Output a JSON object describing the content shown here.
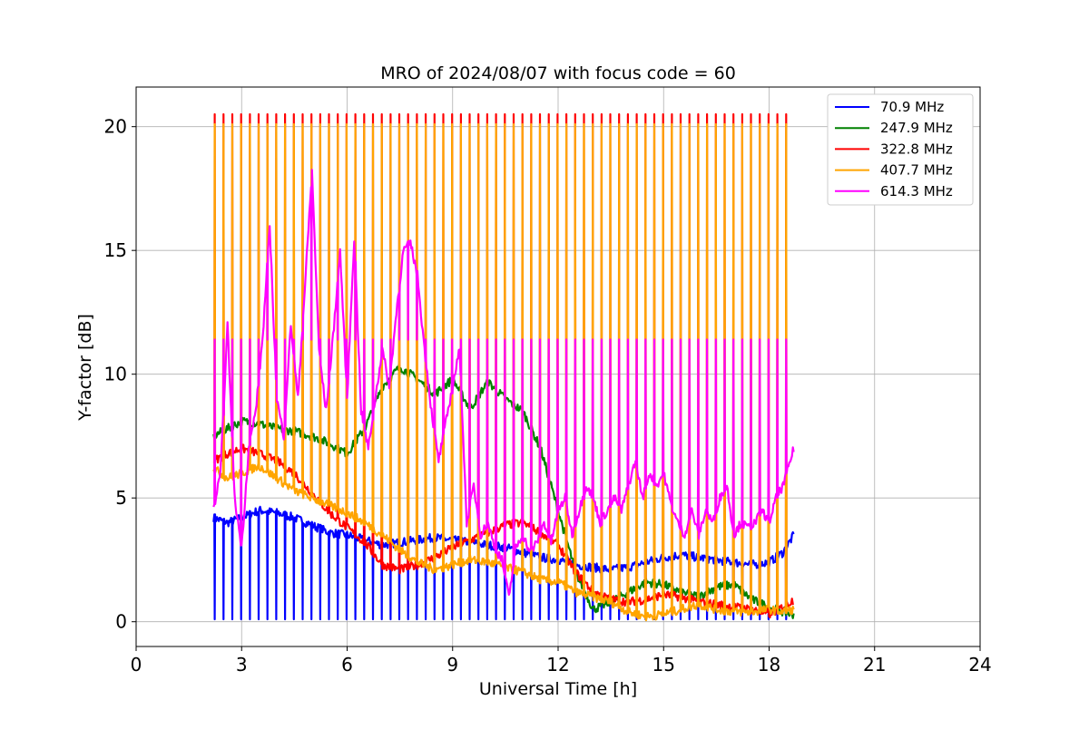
{
  "chart_data": {
    "type": "line",
    "title": "MRO of 2024/08/07 with focus code = 60",
    "xlabel": "Universal Time [h]",
    "ylabel": "Y-factor [dB]",
    "xlim": [
      0,
      24
    ],
    "ylim": [
      -1,
      21.6
    ],
    "xticks": [
      0,
      3,
      6,
      9,
      12,
      15,
      18,
      21,
      24
    ],
    "yticks": [
      0,
      5,
      10,
      15,
      20
    ],
    "grid": true,
    "legend_position": "top-right",
    "data_range_hours": [
      2.2,
      18.7
    ],
    "calibration_cycle_hours": 0.25,
    "series": [
      {
        "name": " 70.9 MHz",
        "color": "#0000ff",
        "spike_to": 0.1,
        "x": [
          2.2,
          2.6,
          3.0,
          3.5,
          4.0,
          4.5,
          5.0,
          5.5,
          6.0,
          6.5,
          7.0,
          7.5,
          8.0,
          8.5,
          9.0,
          9.5,
          10.0,
          10.5,
          11.0,
          11.5,
          12.0,
          12.5,
          13.0,
          13.5,
          14.0,
          14.5,
          15.0,
          15.5,
          16.0,
          16.5,
          17.0,
          17.5,
          18.0,
          18.4,
          18.7
        ],
        "values": [
          4.2,
          4.0,
          4.2,
          4.5,
          4.4,
          4.2,
          3.9,
          3.6,
          3.5,
          3.3,
          3.1,
          3.2,
          3.3,
          3.4,
          3.3,
          3.2,
          3.1,
          3.0,
          2.8,
          2.6,
          2.5,
          2.3,
          2.2,
          2.1,
          2.2,
          2.4,
          2.6,
          2.7,
          2.6,
          2.5,
          2.4,
          2.3,
          2.4,
          2.8,
          3.5
        ]
      },
      {
        "name": " 247.9 MHz",
        "color": "#008000",
        "x": [
          2.2,
          2.6,
          3.0,
          3.5,
          4.0,
          4.5,
          5.0,
          5.5,
          6.0,
          6.5,
          7.0,
          7.5,
          8.0,
          8.5,
          9.0,
          9.5,
          10.0,
          10.5,
          11.0,
          11.5,
          12.0,
          12.5,
          13.0,
          13.5,
          14.0,
          14.5,
          15.0,
          15.5,
          16.0,
          16.5,
          17.0,
          17.5,
          18.0,
          18.4,
          18.7
        ],
        "values": [
          7.5,
          7.8,
          8.1,
          8.0,
          7.8,
          7.7,
          7.5,
          7.2,
          6.8,
          7.8,
          9.5,
          10.3,
          9.8,
          9.2,
          9.8,
          8.6,
          9.7,
          9.0,
          8.5,
          7.0,
          4.5,
          2.0,
          0.5,
          0.8,
          1.2,
          1.6,
          1.5,
          1.2,
          1.0,
          1.4,
          1.5,
          0.9,
          0.6,
          0.4,
          0.3
        ]
      },
      {
        "name": " 322.8 MHz",
        "color": "#ff0000",
        "peak_to": 20.5,
        "x": [
          2.2,
          2.6,
          3.0,
          3.5,
          4.0,
          4.5,
          5.0,
          5.5,
          6.0,
          6.5,
          7.0,
          7.5,
          8.0,
          8.5,
          9.0,
          9.5,
          10.0,
          10.5,
          11.0,
          11.5,
          12.0,
          12.5,
          13.0,
          13.5,
          14.0,
          14.5,
          15.0,
          15.5,
          16.0,
          16.5,
          17.0,
          17.5,
          18.0,
          18.4,
          18.7
        ],
        "values": [
          6.5,
          6.8,
          7.0,
          6.8,
          6.5,
          6.0,
          5.2,
          4.4,
          3.8,
          3.2,
          2.3,
          2.1,
          2.3,
          2.6,
          3.0,
          3.3,
          3.6,
          3.9,
          4.0,
          3.6,
          3.1,
          2.0,
          1.2,
          0.9,
          0.8,
          0.9,
          1.1,
          1.0,
          0.8,
          0.7,
          0.6,
          0.5,
          0.3,
          0.6,
          0.9
        ]
      },
      {
        "name": " 407.7 MHz",
        "color": "#ffa500",
        "peak_to": 20.1,
        "x": [
          2.2,
          2.6,
          3.0,
          3.5,
          4.0,
          4.5,
          5.0,
          5.5,
          6.0,
          6.5,
          7.0,
          7.5,
          8.0,
          8.5,
          9.0,
          9.5,
          10.0,
          10.5,
          11.0,
          11.5,
          12.0,
          12.5,
          13.0,
          13.5,
          14.0,
          14.5,
          15.0,
          15.5,
          16.0,
          16.5,
          17.0,
          17.5,
          18.0,
          18.4,
          18.7
        ],
        "values": [
          6.2,
          5.8,
          6.0,
          6.3,
          5.8,
          5.3,
          5.0,
          4.7,
          4.4,
          4.0,
          3.5,
          2.9,
          2.4,
          2.1,
          2.3,
          2.5,
          2.4,
          2.2,
          2.0,
          1.7,
          1.6,
          1.2,
          1.0,
          0.8,
          0.4,
          0.2,
          0.3,
          0.5,
          0.7,
          0.5,
          0.4,
          0.4,
          0.5,
          0.4,
          0.5
        ]
      },
      {
        "name": " 614.3 MHz",
        "color": "#ff00ff",
        "peak_to": 11.4,
        "x": [
          2.2,
          2.4,
          2.6,
          2.8,
          3.0,
          3.2,
          3.4,
          3.6,
          3.8,
          4.0,
          4.2,
          4.4,
          4.6,
          4.8,
          5.0,
          5.2,
          5.4,
          5.6,
          5.8,
          6.0,
          6.2,
          6.4,
          6.6,
          6.8,
          7.0,
          7.2,
          7.4,
          7.6,
          7.8,
          8.0,
          8.2,
          8.4,
          8.6,
          8.8,
          9.0,
          9.2,
          9.4,
          9.6,
          9.8,
          10.0,
          10.2,
          10.4,
          10.6,
          10.8,
          11.0,
          11.2,
          11.4,
          11.6,
          11.8,
          12.0,
          12.2,
          12.4,
          12.6,
          12.8,
          13.0,
          13.2,
          13.4,
          13.6,
          13.8,
          14.0,
          14.2,
          14.4,
          14.6,
          14.8,
          15.0,
          15.2,
          15.4,
          15.6,
          15.8,
          16.0,
          16.2,
          16.4,
          16.6,
          16.8,
          17.0,
          17.2,
          17.4,
          17.6,
          17.8,
          18.0,
          18.2,
          18.4,
          18.6,
          18.7
        ],
        "values": [
          4.5,
          6.0,
          12.0,
          5.0,
          3.0,
          7.0,
          8.5,
          11.5,
          16.0,
          9.0,
          7.5,
          12.0,
          9.0,
          13.5,
          18.2,
          11.0,
          8.5,
          11.5,
          15.0,
          9.0,
          15.5,
          8.5,
          7.0,
          9.0,
          11.0,
          9.5,
          12.5,
          15.0,
          15.3,
          14.0,
          11.0,
          8.5,
          6.5,
          8.0,
          9.5,
          11.0,
          4.0,
          5.5,
          3.5,
          4.0,
          3.0,
          2.5,
          1.0,
          3.0,
          3.5,
          2.8,
          3.2,
          4.0,
          3.2,
          4.5,
          5.0,
          3.5,
          4.5,
          5.5,
          5.0,
          4.0,
          4.5,
          5.0,
          4.5,
          5.5,
          6.5,
          5.0,
          6.0,
          5.5,
          6.0,
          4.8,
          4.0,
          3.5,
          4.5,
          3.5,
          4.5,
          4.0,
          5.0,
          5.5,
          3.5,
          4.0,
          3.8,
          4.0,
          4.5,
          4.0,
          5.0,
          5.5,
          6.5,
          7.0
        ]
      }
    ]
  }
}
